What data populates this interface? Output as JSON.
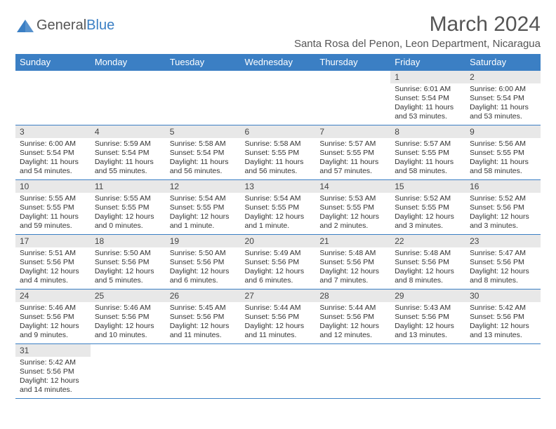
{
  "logo": {
    "text1": "General",
    "text2": "Blue"
  },
  "title": "March 2024",
  "location": "Santa Rosa del Penon, Leon Department, Nicaragua",
  "colors": {
    "header_bg": "#3b7fc4",
    "header_fg": "#ffffff",
    "daynum_bg": "#e8e8e8",
    "border": "#3b7fc4",
    "text": "#333333",
    "title": "#555555"
  },
  "weekdays": [
    "Sunday",
    "Monday",
    "Tuesday",
    "Wednesday",
    "Thursday",
    "Friday",
    "Saturday"
  ],
  "weeks": [
    [
      null,
      null,
      null,
      null,
      null,
      {
        "n": "1",
        "sr": "Sunrise: 6:01 AM",
        "ss": "Sunset: 5:54 PM",
        "dl": "Daylight: 11 hours and 53 minutes."
      },
      {
        "n": "2",
        "sr": "Sunrise: 6:00 AM",
        "ss": "Sunset: 5:54 PM",
        "dl": "Daylight: 11 hours and 53 minutes."
      }
    ],
    [
      {
        "n": "3",
        "sr": "Sunrise: 6:00 AM",
        "ss": "Sunset: 5:54 PM",
        "dl": "Daylight: 11 hours and 54 minutes."
      },
      {
        "n": "4",
        "sr": "Sunrise: 5:59 AM",
        "ss": "Sunset: 5:54 PM",
        "dl": "Daylight: 11 hours and 55 minutes."
      },
      {
        "n": "5",
        "sr": "Sunrise: 5:58 AM",
        "ss": "Sunset: 5:54 PM",
        "dl": "Daylight: 11 hours and 56 minutes."
      },
      {
        "n": "6",
        "sr": "Sunrise: 5:58 AM",
        "ss": "Sunset: 5:55 PM",
        "dl": "Daylight: 11 hours and 56 minutes."
      },
      {
        "n": "7",
        "sr": "Sunrise: 5:57 AM",
        "ss": "Sunset: 5:55 PM",
        "dl": "Daylight: 11 hours and 57 minutes."
      },
      {
        "n": "8",
        "sr": "Sunrise: 5:57 AM",
        "ss": "Sunset: 5:55 PM",
        "dl": "Daylight: 11 hours and 58 minutes."
      },
      {
        "n": "9",
        "sr": "Sunrise: 5:56 AM",
        "ss": "Sunset: 5:55 PM",
        "dl": "Daylight: 11 hours and 58 minutes."
      }
    ],
    [
      {
        "n": "10",
        "sr": "Sunrise: 5:55 AM",
        "ss": "Sunset: 5:55 PM",
        "dl": "Daylight: 11 hours and 59 minutes."
      },
      {
        "n": "11",
        "sr": "Sunrise: 5:55 AM",
        "ss": "Sunset: 5:55 PM",
        "dl": "Daylight: 12 hours and 0 minutes."
      },
      {
        "n": "12",
        "sr": "Sunrise: 5:54 AM",
        "ss": "Sunset: 5:55 PM",
        "dl": "Daylight: 12 hours and 1 minute."
      },
      {
        "n": "13",
        "sr": "Sunrise: 5:54 AM",
        "ss": "Sunset: 5:55 PM",
        "dl": "Daylight: 12 hours and 1 minute."
      },
      {
        "n": "14",
        "sr": "Sunrise: 5:53 AM",
        "ss": "Sunset: 5:55 PM",
        "dl": "Daylight: 12 hours and 2 minutes."
      },
      {
        "n": "15",
        "sr": "Sunrise: 5:52 AM",
        "ss": "Sunset: 5:55 PM",
        "dl": "Daylight: 12 hours and 3 minutes."
      },
      {
        "n": "16",
        "sr": "Sunrise: 5:52 AM",
        "ss": "Sunset: 5:56 PM",
        "dl": "Daylight: 12 hours and 3 minutes."
      }
    ],
    [
      {
        "n": "17",
        "sr": "Sunrise: 5:51 AM",
        "ss": "Sunset: 5:56 PM",
        "dl": "Daylight: 12 hours and 4 minutes."
      },
      {
        "n": "18",
        "sr": "Sunrise: 5:50 AM",
        "ss": "Sunset: 5:56 PM",
        "dl": "Daylight: 12 hours and 5 minutes."
      },
      {
        "n": "19",
        "sr": "Sunrise: 5:50 AM",
        "ss": "Sunset: 5:56 PM",
        "dl": "Daylight: 12 hours and 6 minutes."
      },
      {
        "n": "20",
        "sr": "Sunrise: 5:49 AM",
        "ss": "Sunset: 5:56 PM",
        "dl": "Daylight: 12 hours and 6 minutes."
      },
      {
        "n": "21",
        "sr": "Sunrise: 5:48 AM",
        "ss": "Sunset: 5:56 PM",
        "dl": "Daylight: 12 hours and 7 minutes."
      },
      {
        "n": "22",
        "sr": "Sunrise: 5:48 AM",
        "ss": "Sunset: 5:56 PM",
        "dl": "Daylight: 12 hours and 8 minutes."
      },
      {
        "n": "23",
        "sr": "Sunrise: 5:47 AM",
        "ss": "Sunset: 5:56 PM",
        "dl": "Daylight: 12 hours and 8 minutes."
      }
    ],
    [
      {
        "n": "24",
        "sr": "Sunrise: 5:46 AM",
        "ss": "Sunset: 5:56 PM",
        "dl": "Daylight: 12 hours and 9 minutes."
      },
      {
        "n": "25",
        "sr": "Sunrise: 5:46 AM",
        "ss": "Sunset: 5:56 PM",
        "dl": "Daylight: 12 hours and 10 minutes."
      },
      {
        "n": "26",
        "sr": "Sunrise: 5:45 AM",
        "ss": "Sunset: 5:56 PM",
        "dl": "Daylight: 12 hours and 11 minutes."
      },
      {
        "n": "27",
        "sr": "Sunrise: 5:44 AM",
        "ss": "Sunset: 5:56 PM",
        "dl": "Daylight: 12 hours and 11 minutes."
      },
      {
        "n": "28",
        "sr": "Sunrise: 5:44 AM",
        "ss": "Sunset: 5:56 PM",
        "dl": "Daylight: 12 hours and 12 minutes."
      },
      {
        "n": "29",
        "sr": "Sunrise: 5:43 AM",
        "ss": "Sunset: 5:56 PM",
        "dl": "Daylight: 12 hours and 13 minutes."
      },
      {
        "n": "30",
        "sr": "Sunrise: 5:42 AM",
        "ss": "Sunset: 5:56 PM",
        "dl": "Daylight: 12 hours and 13 minutes."
      }
    ],
    [
      {
        "n": "31",
        "sr": "Sunrise: 5:42 AM",
        "ss": "Sunset: 5:56 PM",
        "dl": "Daylight: 12 hours and 14 minutes."
      },
      null,
      null,
      null,
      null,
      null,
      null
    ]
  ]
}
